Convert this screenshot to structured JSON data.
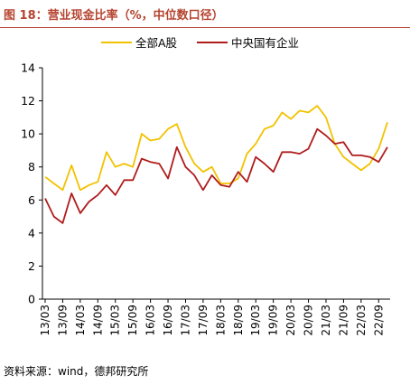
{
  "figure": {
    "title": "图 18：营业现金比率（%，中位数口径）",
    "source": "资料来源：wind，德邦研究所"
  },
  "colors": {
    "title": "#b5432f",
    "series_all_a": "#f2c200",
    "series_soe": "#b01c1c",
    "axis": "#000000"
  },
  "chart_data": {
    "type": "line",
    "ylim": [
      0,
      14
    ],
    "yticks": [
      0,
      2,
      4,
      6,
      8,
      10,
      12,
      14
    ],
    "legend_position": "top-center",
    "grid": false,
    "x": [
      "13/03",
      "13/06",
      "13/09",
      "13/12",
      "14/03",
      "14/06",
      "14/09",
      "14/12",
      "15/03",
      "15/06",
      "15/09",
      "15/12",
      "16/03",
      "16/06",
      "16/09",
      "16/12",
      "17/03",
      "17/06",
      "17/09",
      "17/12",
      "18/03",
      "18/06",
      "18/09",
      "18/12",
      "19/03",
      "19/06",
      "19/09",
      "19/12",
      "20/03",
      "20/06",
      "20/09",
      "20/12",
      "21/03",
      "21/06",
      "21/09",
      "21/12",
      "22/03",
      "22/06",
      "22/09",
      "22/12"
    ],
    "xtick_labels": [
      "13/03",
      "13/09",
      "14/03",
      "14/09",
      "15/03",
      "15/09",
      "16/03",
      "16/09",
      "17/03",
      "17/09",
      "18/03",
      "18/09",
      "19/03",
      "19/09",
      "20/03",
      "20/09",
      "21/03",
      "21/09",
      "22/03",
      "22/09"
    ],
    "series": [
      {
        "name": "全部A股",
        "color": "#f2c200",
        "values": [
          7.4,
          7.0,
          6.6,
          8.1,
          6.6,
          6.9,
          7.1,
          8.9,
          8.0,
          8.2,
          8.0,
          10.0,
          9.6,
          9.7,
          10.3,
          10.6,
          9.2,
          8.2,
          7.7,
          8.0,
          7.0,
          7.0,
          7.3,
          8.8,
          9.4,
          10.3,
          10.5,
          11.3,
          10.9,
          11.4,
          11.3,
          11.7,
          11.0,
          9.4,
          8.6,
          8.2,
          7.8,
          8.2,
          9.1,
          10.7
        ]
      },
      {
        "name": "中央国有企业",
        "color": "#b01c1c",
        "values": [
          6.1,
          5.0,
          4.6,
          6.4,
          5.2,
          5.9,
          6.3,
          6.9,
          6.3,
          7.2,
          7.2,
          8.5,
          8.3,
          8.2,
          7.3,
          9.2,
          8.0,
          7.5,
          6.6,
          7.5,
          6.9,
          6.8,
          7.7,
          7.1,
          8.6,
          8.2,
          7.7,
          8.9,
          8.9,
          8.8,
          9.1,
          10.3,
          9.9,
          9.4,
          9.5,
          8.7,
          8.7,
          8.6,
          8.3,
          9.2
        ]
      }
    ]
  }
}
